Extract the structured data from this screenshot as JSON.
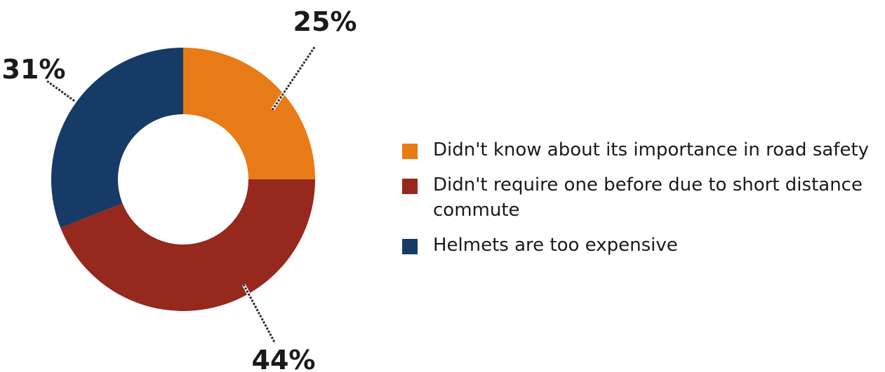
{
  "chart_data": {
    "type": "pie",
    "title": "",
    "categories": [
      "Didn't know about its importance in road safety",
      "Didn't require one before due to short distance commute",
      "Helmets are too expensive"
    ],
    "values": [
      25,
      44,
      31
    ],
    "value_labels": [
      "25%",
      "44%",
      "31%"
    ],
    "colors": [
      "#E87B16",
      "#96281E",
      "#163B67"
    ],
    "donut": true,
    "legend_position": "right"
  }
}
